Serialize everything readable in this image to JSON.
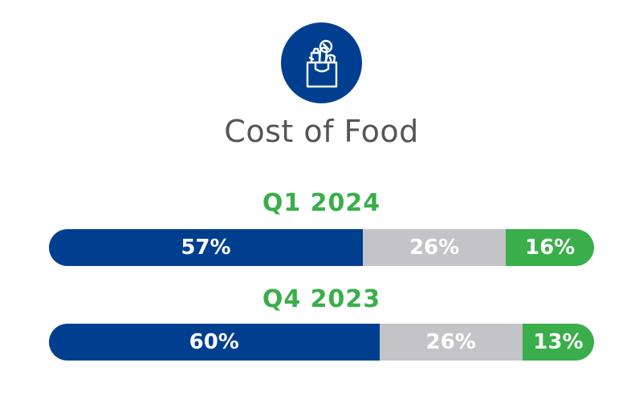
{
  "colors": {
    "dark_blue": "#003f8f",
    "gray": "#c4c4c8",
    "green": "#3aae4a",
    "title_gray": "#555555"
  },
  "icon": "grocery-bag-icon",
  "chart_data": {
    "type": "bar",
    "orientation": "horizontal-stacked-100",
    "title": "Cost of Food",
    "categories": [
      "Q1 2024",
      "Q4 2023"
    ],
    "series": [
      {
        "color": "#003f8f",
        "values": [
          57,
          60
        ],
        "labels": [
          "57%",
          "60%"
        ]
      },
      {
        "color": "#c4c4c8",
        "values": [
          26,
          26
        ],
        "labels": [
          "26%",
          "26%"
        ]
      },
      {
        "color": "#3aae4a",
        "values": [
          16,
          13
        ],
        "labels": [
          "16%",
          "13%"
        ]
      }
    ]
  }
}
